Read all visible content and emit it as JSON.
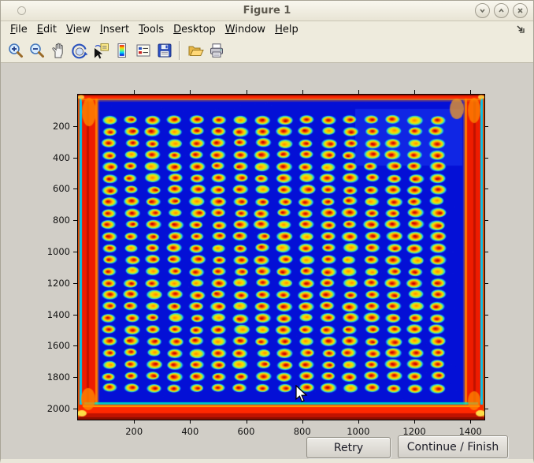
{
  "window": {
    "title": "Figure 1",
    "controls": [
      {
        "name": "minimize",
        "glyph": "chevron-down"
      },
      {
        "name": "maximize",
        "glyph": "chevron-up"
      },
      {
        "name": "close",
        "glyph": "x"
      }
    ]
  },
  "menu": {
    "items": [
      "File",
      "Edit",
      "View",
      "Insert",
      "Tools",
      "Desktop",
      "Window",
      "Help"
    ],
    "dock_icon": "dock-arrow"
  },
  "toolbar": {
    "icons": [
      "zoom-in",
      "zoom-out",
      "pan",
      "rotate-3d",
      "data-cursor",
      "insert-colorbar",
      "insert-legend",
      "save-figure",
      "separator",
      "open-file",
      "print-figure"
    ]
  },
  "figure": {
    "buttons": [
      {
        "label": "Retry"
      },
      {
        "label": "Continue / Finish"
      }
    ]
  },
  "chart_data": {
    "type": "heatmap",
    "title": "",
    "xlabel": "",
    "ylabel": "",
    "x_ticks": [
      200,
      400,
      600,
      800,
      1000,
      1200,
      1400
    ],
    "y_ticks": [
      200,
      400,
      600,
      800,
      1000,
      1200,
      1400,
      1600,
      1800,
      2000
    ],
    "x_range": [
      0,
      1450
    ],
    "y_range": [
      0,
      2070
    ],
    "y_axis_direction": "down",
    "grid": {
      "rows": 24,
      "cols": 16
    },
    "colormap": "jet",
    "colors": {
      "background_cold": "#0410d6",
      "well_halo": "#18cce8",
      "well_ring": "#b0ee30",
      "well_warm": "#ffd800",
      "well_hot": "#ff9000",
      "well_core": "#c80000",
      "edge_hot": "#ee1c00",
      "edge_accent": "#ff8800",
      "corner_highlight": "#ffe84a"
    },
    "description": "False-color (jet colormap) thermal image of a 384-well microplate: 24 rows by 16 columns of hot wells (red cores with orange, yellow and cyan halos) on a cold deep-blue plate; plate edges glow red-orange with cyan streaks."
  }
}
